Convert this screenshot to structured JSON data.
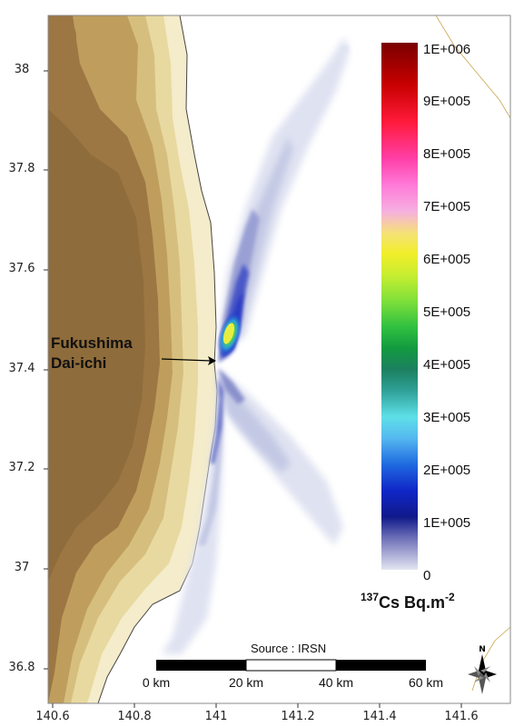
{
  "map": {
    "source": "Source : IRSN",
    "site": {
      "line1": "Fukushima",
      "line2": "Dai-ichi"
    },
    "unit": {
      "isotope_mass": "137",
      "rest": "Cs Bq.m",
      "exponent": "-2"
    },
    "north_label": "N",
    "y_ticks": [
      "38",
      "37.8",
      "37.6",
      "37.4",
      "37.2",
      "37",
      "36.8"
    ],
    "x_ticks": [
      "140.6",
      "140.8",
      "141",
      "141.2",
      "141.4",
      "141.6"
    ],
    "legend": [
      "1E+006",
      "9E+005",
      "8E+005",
      "7E+005",
      "6E+005",
      "5E+005",
      "4E+005",
      "3E+005",
      "2E+005",
      "1E+005",
      "0"
    ],
    "scale_bar": [
      "0 km",
      "20 km",
      "40 km",
      "60 km"
    ],
    "colors": {
      "land_high": "#8c6b3c",
      "land_low": "#f3ebc9",
      "plume_low": "#cfd3ea",
      "plume_mid": "#2b3ac4",
      "plume_peak": "#e5f030",
      "legend_top": "#8b0000"
    }
  }
}
